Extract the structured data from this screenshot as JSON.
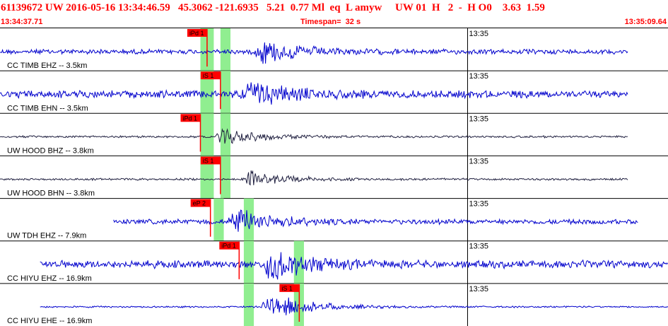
{
  "header": {
    "event_line": "61139672 UW 2016-05-16 13:34:46.59   45.3062 -121.6935   5.21  0.77 Ml  eq  L amyw     UW 01  H   2  -  H O0    3.63  1.59",
    "start_time": "13:34:37.71",
    "timespan": "Timespan=  32 s",
    "end_time": "13:35:09.64"
  },
  "colors": {
    "header_text": "#ff0000",
    "trace_blue": "#0000cc",
    "trace_dark": "#202040",
    "pick_window": "#90ee90",
    "pick_marker": "#ff0000"
  },
  "time_label": "13:35",
  "traces": [
    {
      "label": "CC TIMB EHZ -- 3.5km",
      "color": "blue",
      "start": 0.0,
      "end": 0.94,
      "onset": 0.38,
      "amp": 0.55,
      "noise": 0.12,
      "pick": {
        "text": "iPd 1",
        "pos": 0.31
      },
      "windows": [
        [
          0.3,
          0.32
        ],
        [
          0.33,
          0.345
        ]
      ]
    },
    {
      "label": "CC TIMB EHN -- 3.5km",
      "color": "blue",
      "start": 0.0,
      "end": 0.94,
      "onset": 0.36,
      "amp": 0.6,
      "noise": 0.18,
      "pick": {
        "text": "iS 1",
        "pos": 0.33
      },
      "windows": [
        [
          0.3,
          0.32
        ],
        [
          0.33,
          0.345
        ]
      ]
    },
    {
      "label": "UW HOOD BHZ -- 3.8km",
      "color": "dark",
      "start": 0.0,
      "end": 0.94,
      "onset": 0.32,
      "amp": 0.4,
      "noise": 0.05,
      "pick": {
        "text": "iPd 1",
        "pos": 0.3
      },
      "windows": [
        [
          0.3,
          0.32
        ],
        [
          0.33,
          0.345
        ]
      ]
    },
    {
      "label": "UW HOOD BHN -- 3.8km",
      "color": "dark",
      "start": 0.0,
      "end": 0.94,
      "onset": 0.36,
      "amp": 0.35,
      "noise": 0.05,
      "pick": {
        "text": "iS 1",
        "pos": 0.33
      },
      "windows": [
        [
          0.3,
          0.32
        ],
        [
          0.33,
          0.345
        ]
      ]
    },
    {
      "label": "UW TDH EHZ -- 7.9km",
      "color": "blue",
      "start": 0.17,
      "end": 0.955,
      "onset": 0.34,
      "amp": 0.6,
      "noise": 0.12,
      "pick": {
        "text": "eP 2",
        "pos": 0.315
      },
      "windows": [
        [
          0.32,
          0.335
        ],
        [
          0.365,
          0.38
        ]
      ]
    },
    {
      "label": "CC HIYU EHZ -- 16.9km",
      "color": "blue",
      "start": 0.06,
      "end": 1.0,
      "onset": 0.39,
      "amp": 0.7,
      "noise": 0.18,
      "pick": {
        "text": "iPd 1",
        "pos": 0.358
      },
      "windows": [
        [
          0.365,
          0.38
        ],
        [
          0.44,
          0.455
        ]
      ]
    },
    {
      "label": "CC HIYU EHE -- 16.9km",
      "color": "blue",
      "start": 0.06,
      "end": 1.0,
      "onset": 0.39,
      "amp": 0.65,
      "noise": 0.04,
      "pick": {
        "text": "iS 1",
        "pos": 0.448
      },
      "windows": [
        [
          0.365,
          0.38
        ],
        [
          0.44,
          0.455
        ]
      ]
    }
  ]
}
